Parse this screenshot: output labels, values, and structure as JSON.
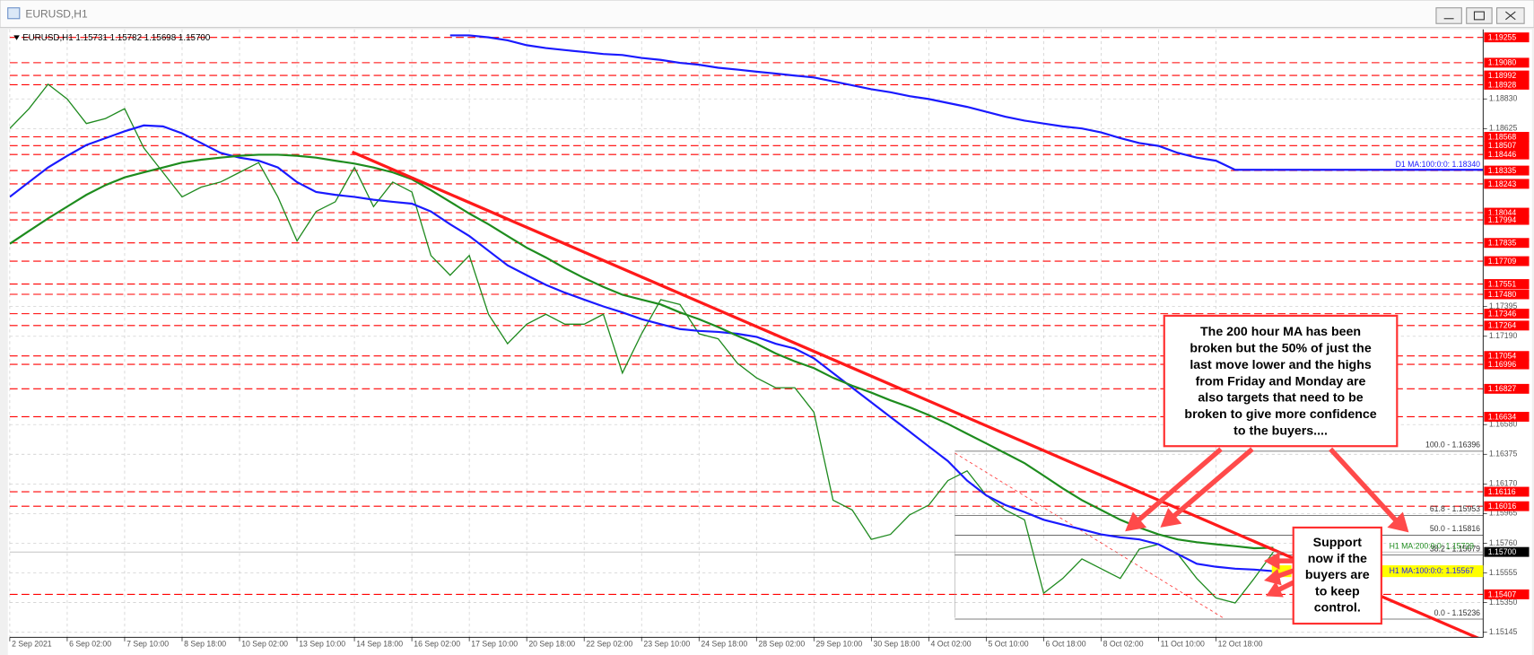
{
  "window": {
    "title": "EURUSD,H1"
  },
  "chart_data": {
    "type": "line",
    "header": "EURUSD,H1  1.15731 1.15782 1.15698 1.15700",
    "categories": [
      "2 Sep 2021",
      null,
      null,
      "6 Sep 02:00",
      null,
      null,
      "7 Sep 10:00",
      null,
      null,
      "8 Sep 18:00",
      null,
      null,
      "10 Sep 02:00",
      null,
      null,
      "13 Sep 10:00",
      null,
      null,
      "14 Sep 18:00",
      null,
      null,
      "16 Sep 02:00",
      null,
      null,
      "17 Sep 10:00",
      null,
      null,
      "20 Sep 18:00",
      null,
      null,
      "22 Sep 02:00",
      null,
      null,
      "23 Sep 10:00",
      null,
      null,
      "24 Sep 18:00",
      null,
      null,
      "28 Sep 02:00",
      null,
      null,
      "29 Sep 10:00",
      null,
      null,
      "30 Sep 18:00",
      null,
      null,
      "4 Oct 02:00",
      null,
      null,
      "5 Oct 10:00",
      null,
      null,
      "6 Oct 18:00",
      null,
      null,
      "8 Oct 02:00",
      null,
      null,
      "11 Oct 10:00",
      null,
      null,
      "12 Oct 18:00",
      null,
      null,
      null
    ],
    "series": [
      {
        "color": "#1f8a1f",
        "values": [
          1.18626,
          1.18762,
          1.18931,
          1.18829,
          1.1866,
          1.18694,
          1.18762,
          1.18491,
          1.18322,
          1.18153,
          1.18221,
          1.18255,
          1.18322,
          1.1839,
          1.18153,
          1.17849,
          1.18052,
          1.18119,
          1.18356,
          1.18086,
          1.18255,
          1.18187,
          1.17748,
          1.17612,
          1.17748,
          1.17342,
          1.17139,
          1.17274,
          1.17342,
          1.17274,
          1.17274,
          1.17342,
          1.16936,
          1.17207,
          1.17443,
          1.1741,
          1.17207,
          1.17173,
          1.17004,
          1.16903,
          1.16835,
          1.16835,
          1.16666,
          1.16058,
          1.1599,
          1.15787,
          1.15821,
          1.15956,
          1.16024,
          1.16193,
          1.1626,
          1.16091,
          1.1599,
          1.15922,
          1.15415,
          1.15517,
          1.15652,
          1.15584,
          1.15517,
          1.1572,
          1.15753,
          1.15686,
          1.15517,
          1.15382,
          1.15348,
          1.15517,
          1.157
        ]
      },
      {
        "color": "#1a1aff",
        "label": "H1 MA:100:0:0: 1.15567",
        "values": [
          1.18153,
          1.18255,
          1.18356,
          1.18437,
          1.18511,
          1.18559,
          1.18606,
          1.18647,
          1.1864,
          1.18592,
          1.18525,
          1.18457,
          1.18424,
          1.18403,
          1.18356,
          1.18255,
          1.18187,
          1.18167,
          1.18153,
          1.18133,
          1.18119,
          1.18106,
          1.18052,
          1.17964,
          1.17883,
          1.17781,
          1.1768,
          1.17612,
          1.17545,
          1.17491,
          1.17443,
          1.17396,
          1.17355,
          1.17308,
          1.17274,
          1.1724,
          1.17227,
          1.1722,
          1.17207,
          1.17186,
          1.17139,
          1.17105,
          1.17038,
          1.16936,
          1.16835,
          1.16734,
          1.16632,
          1.16531,
          1.16429,
          1.16328,
          1.16193,
          1.16091,
          1.16024,
          1.15976,
          1.15922,
          1.15889,
          1.15855,
          1.15821,
          1.15801,
          1.15787,
          1.15753,
          1.15686,
          1.15618,
          1.15598,
          1.15584,
          1.15578,
          1.15567
        ]
      },
      {
        "color": "#1e8c1e",
        "label": "H1 MA:200:0:0: 1.15729",
        "values": [
          1.17829,
          1.17917,
          1.18004,
          1.18086,
          1.18167,
          1.18234,
          1.18288,
          1.18322,
          1.18356,
          1.1839,
          1.1841,
          1.18424,
          1.18437,
          1.18444,
          1.18444,
          1.18437,
          1.18424,
          1.18403,
          1.18383,
          1.18356,
          1.18322,
          1.18275,
          1.182,
          1.18119,
          1.18038,
          1.17964,
          1.17883,
          1.17802,
          1.17734,
          1.1766,
          1.17592,
          1.17531,
          1.17477,
          1.17443,
          1.1741,
          1.17355,
          1.17308,
          1.17254,
          1.17193,
          1.17139,
          1.17072,
          1.17017,
          1.1697,
          1.16903,
          1.16848,
          1.16801,
          1.16747,
          1.167,
          1.16646,
          1.16585,
          1.16517,
          1.1645,
          1.16382,
          1.16314,
          1.16227,
          1.16139,
          1.16058,
          1.1599,
          1.15922,
          1.15868,
          1.15821,
          1.15787,
          1.15767,
          1.15753,
          1.1574,
          1.15726,
          1.15729
        ]
      },
      {
        "color": "#1a1aff",
        "label": "D1 MA:100:0:0: 1.18340",
        "values": [
          null,
          null,
          null,
          null,
          null,
          null,
          null,
          null,
          null,
          null,
          null,
          null,
          null,
          null,
          null,
          null,
          null,
          null,
          null,
          null,
          null,
          null,
          null,
          1.19269,
          1.19269,
          1.19255,
          1.19235,
          1.19201,
          1.19181,
          1.19167,
          1.19154,
          1.1914,
          1.19133,
          1.19113,
          1.19099,
          1.19079,
          1.19066,
          1.19045,
          1.19032,
          1.19018,
          1.19005,
          1.18991,
          1.18978,
          1.18951,
          1.18924,
          1.18897,
          1.18876,
          1.18849,
          1.18829,
          1.18802,
          1.18775,
          1.18741,
          1.18707,
          1.1868,
          1.1866,
          1.1864,
          1.18626,
          1.18599,
          1.18559,
          1.18525,
          1.18505,
          1.18457,
          1.18424,
          1.18403,
          1.1834,
          1.1834,
          1.1834
        ]
      }
    ],
    "ylim": [
      1.1511,
      1.1931
    ],
    "yticks": [
      {
        "value": 1.1883,
        "label": "1.18830"
      },
      1.18625,
      1.17395,
      {
        "value": 1.1719,
        "label": "1.17190"
      },
      {
        "value": 1.1658,
        "label": "1.16580"
      },
      1.16375,
      {
        "value": 1.1617,
        "label": "1.16170"
      },
      1.15965,
      {
        "value": 1.1576,
        "label": "1.15760"
      },
      1.15555,
      {
        "value": 1.1535,
        "label": "1.15350"
      },
      1.15145
    ],
    "grid": true,
    "levels": [
      1.19255,
      {
        "value": 1.1908,
        "label": "1.19080"
      },
      1.18992,
      1.18928,
      1.18568,
      1.18507,
      1.18446,
      1.18335,
      1.18243,
      1.18044,
      1.17994,
      1.17835,
      1.17709,
      1.17551,
      {
        "value": 1.1748,
        "label": "1.17480"
      },
      1.17346,
      1.17264,
      1.17054,
      1.16996,
      1.16827,
      1.16634,
      1.16116,
      1.16016,
      1.15407
    ],
    "levels_color": "#ff0000",
    "current_price": {
      "value": 1.157,
      "label": "1.15700"
    },
    "fibonacci": [
      {
        "value": 1.16396,
        "label": "100.0 - 1.16396"
      },
      {
        "value": 1.15953,
        "label": "61.8 - 1.15953"
      },
      {
        "value": 1.15816,
        "label": "50.0 - 1.15816"
      },
      {
        "value": 1.15679,
        "label": "38.2 - 1.15679"
      },
      {
        "value": 1.15236,
        "label": "0.0 - 1.15236"
      }
    ],
    "annotations": [
      [
        "The 200 hour MA has been",
        "broken but the 50% of just the",
        "last move lower and the highs",
        "from Friday and Monday are",
        "also targets that need to be",
        "broken to give more confidence",
        "to the buyers...."
      ],
      [
        "Support",
        "now if the",
        "buyers are",
        "to keep",
        "control."
      ]
    ]
  }
}
